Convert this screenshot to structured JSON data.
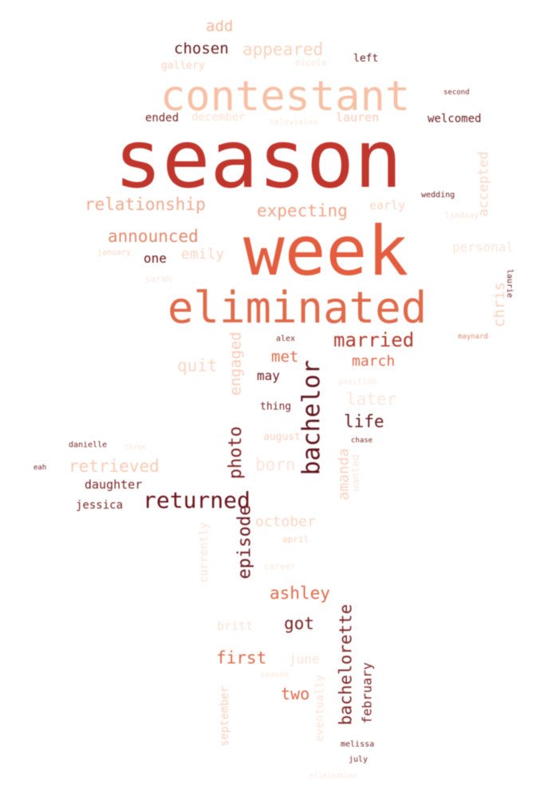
{
  "wordcloud": {
    "words": [
      {
        "text": "season",
        "color": "#c0362c"
      },
      {
        "text": "week",
        "color": "#e35d3e"
      },
      {
        "text": "contestant",
        "color": "#f7c0a4"
      },
      {
        "text": "eliminated",
        "color": "#e06a4a"
      },
      {
        "text": "bachelor",
        "color": "#5c0f16"
      },
      {
        "text": "returned",
        "color": "#6a1218"
      },
      {
        "text": "married",
        "color": "#b33a2c"
      },
      {
        "text": "relationship",
        "color": "#f2a98e"
      },
      {
        "text": "expecting",
        "color": "#f0a488"
      },
      {
        "text": "announced",
        "color": "#e08a6a"
      },
      {
        "text": "appeared",
        "color": "#fad2bc"
      },
      {
        "text": "chosen",
        "color": "#6a1a1c"
      },
      {
        "text": "add",
        "color": "#f4b89c"
      },
      {
        "text": "gallery",
        "color": "#fcd4c0"
      },
      {
        "text": "nicole",
        "color": "#fde4d6"
      },
      {
        "text": "left",
        "color": "#6a1a1c"
      },
      {
        "text": "second",
        "color": "#7a1f22"
      },
      {
        "text": "ended",
        "color": "#7a2424"
      },
      {
        "text": "december",
        "color": "#fde2d4"
      },
      {
        "text": "television",
        "color": "#fde6da"
      },
      {
        "text": "lauren",
        "color": "#fbcab4"
      },
      {
        "text": "welcomed",
        "color": "#6a1a1c"
      },
      {
        "text": "accepted",
        "color": "#fcd6c4"
      },
      {
        "text": "wedding",
        "color": "#6a1a1c"
      },
      {
        "text": "early",
        "color": "#fcd6c4"
      },
      {
        "text": "lindsay",
        "color": "#fde2d6"
      },
      {
        "text": "personal",
        "color": "#fde4d8"
      },
      {
        "text": "january",
        "color": "#fcd6c4"
      },
      {
        "text": "one",
        "color": "#6a1218"
      },
      {
        "text": "emily",
        "color": "#fcd6c4"
      },
      {
        "text": "sarah",
        "color": "#fde6dc"
      },
      {
        "text": "chris",
        "color": "#fcd0bc"
      },
      {
        "text": "laurie",
        "color": "#6a1a1c"
      },
      {
        "text": "alex",
        "color": "#7a2424"
      },
      {
        "text": "maynard",
        "color": "#e08a6a"
      },
      {
        "text": "quit",
        "color": "#fcd6c4"
      },
      {
        "text": "engaged",
        "color": "#fbcab4"
      },
      {
        "text": "met",
        "color": "#e06a4a"
      },
      {
        "text": "may",
        "color": "#6a1a1c"
      },
      {
        "text": "march",
        "color": "#e06a4a"
      },
      {
        "text": "position",
        "color": "#fde6dc"
      },
      {
        "text": "later",
        "color": "#fde6dc"
      },
      {
        "text": "thing",
        "color": "#7a2424"
      },
      {
        "text": "life",
        "color": "#6a1a1c"
      },
      {
        "text": "episode",
        "color": "#6a1218"
      },
      {
        "text": "photo",
        "color": "#7a2020"
      },
      {
        "text": "august",
        "color": "#fcd0bc"
      },
      {
        "text": "amanda",
        "color": "#fcd0bc"
      },
      {
        "text": "danielle",
        "color": "#7a2424"
      },
      {
        "text": "three",
        "color": "#fde2d6"
      },
      {
        "text": "chase",
        "color": "#7a2424"
      },
      {
        "text": "eah",
        "color": "#7a2424"
      },
      {
        "text": "retrieved",
        "color": "#fbcab4"
      },
      {
        "text": "born",
        "color": "#fde4da"
      },
      {
        "text": "daughter",
        "color": "#7a2424"
      },
      {
        "text": "jessica",
        "color": "#7a2424"
      },
      {
        "text": "wanted",
        "color": "#fde6dc"
      },
      {
        "text": "october",
        "color": "#fcd6c4"
      },
      {
        "text": "currently",
        "color": "#fde2d6"
      },
      {
        "text": "april",
        "color": "#fcd0bc"
      },
      {
        "text": "career",
        "color": "#fde6dc"
      },
      {
        "text": "ashley",
        "color": "#e06a4a"
      },
      {
        "text": "bachelorette",
        "color": "#7a2020"
      },
      {
        "text": "got",
        "color": "#7a2020"
      },
      {
        "text": "britt",
        "color": "#fde2d6"
      },
      {
        "text": "first",
        "color": "#e06a4a"
      },
      {
        "text": "june",
        "color": "#fde2d6"
      },
      {
        "text": "february",
        "color": "#7a2424"
      },
      {
        "text": "season",
        "color": "#fde6dc"
      },
      {
        "text": "two",
        "color": "#e06a4a"
      },
      {
        "text": "september",
        "color": "#fcd0bc"
      },
      {
        "text": "eventually",
        "color": "#fde2d6"
      },
      {
        "text": "melissa",
        "color": "#7a2424"
      },
      {
        "text": "july",
        "color": "#7a2424"
      },
      {
        "text": "elimination",
        "color": "#fde6dc"
      }
    ]
  }
}
